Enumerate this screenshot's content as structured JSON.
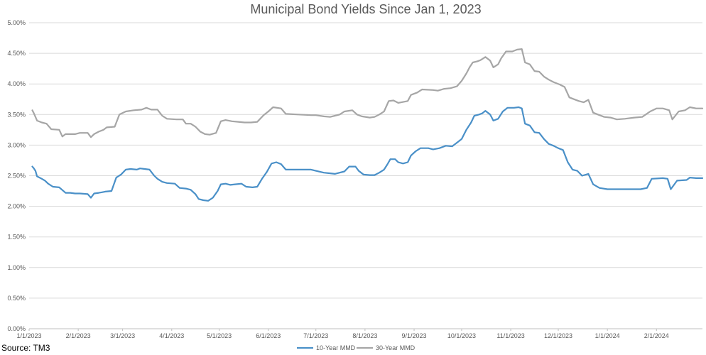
{
  "chart_data": {
    "type": "line",
    "title": "Municipal Bond Yields Since Jan 1, 2023",
    "xlabel": "",
    "ylabel": "",
    "y_unit": "%",
    "ylim": [
      0,
      5
    ],
    "y_ticks": [
      0,
      0.5,
      1.0,
      1.5,
      2.0,
      2.5,
      3.0,
      3.5,
      4.0,
      4.5,
      5.0
    ],
    "y_tick_labels": [
      "0.00%",
      "0.50%",
      "1.00%",
      "1.50%",
      "2.00%",
      "2.50%",
      "3.00%",
      "3.50%",
      "4.00%",
      "4.50%",
      "5.00%"
    ],
    "xlim": [
      "1/1/2023",
      "3/1/2024"
    ],
    "x_tick_labels": [
      "1/1/2023",
      "2/1/2023",
      "3/1/2023",
      "4/1/2023",
      "5/1/2023",
      "6/1/2023",
      "7/1/2023",
      "8/1/2023",
      "9/1/2023",
      "10/1/2023",
      "11/1/2023",
      "12/1/2023",
      "1/1/2024",
      "2/1/2024"
    ],
    "grid": "horizontal",
    "legend_position": "bottom",
    "series": [
      {
        "name": "10-Year MMD",
        "color": "#4a90c8",
        "points": [
          [
            "1/3/2023",
            2.65
          ],
          [
            "1/4/2023",
            2.62
          ],
          [
            "1/5/2023",
            2.58
          ],
          [
            "1/6/2023",
            2.49
          ],
          [
            "1/9/2023",
            2.45
          ],
          [
            "1/11/2023",
            2.42
          ],
          [
            "1/13/2023",
            2.37
          ],
          [
            "1/16/2023",
            2.32
          ],
          [
            "1/20/2023",
            2.31
          ],
          [
            "1/24/2023",
            2.22
          ],
          [
            "1/27/2023",
            2.22
          ],
          [
            "1/30/2023",
            2.21
          ],
          [
            "2/2/2023",
            2.21
          ],
          [
            "2/7/2023",
            2.2
          ],
          [
            "2/9/2023",
            2.14
          ],
          [
            "2/11/2023",
            2.21
          ],
          [
            "2/14/2023",
            2.22
          ],
          [
            "2/16/2023",
            2.23
          ],
          [
            "2/18/2023",
            2.24
          ],
          [
            "2/22/2023",
            2.25
          ],
          [
            "2/25/2023",
            2.47
          ],
          [
            "2/28/2023",
            2.52
          ],
          [
            "3/3/2023",
            2.6
          ],
          [
            "3/6/2023",
            2.61
          ],
          [
            "3/10/2023",
            2.6
          ],
          [
            "3/12/2023",
            2.62
          ],
          [
            "3/15/2023",
            2.61
          ],
          [
            "3/18/2023",
            2.6
          ],
          [
            "3/21/2023",
            2.5
          ],
          [
            "3/23/2023",
            2.45
          ],
          [
            "3/26/2023",
            2.4
          ],
          [
            "3/29/2023",
            2.38
          ],
          [
            "4/3/2023",
            2.37
          ],
          [
            "4/6/2023",
            2.3
          ],
          [
            "4/10/2023",
            2.29
          ],
          [
            "4/13/2023",
            2.27
          ],
          [
            "4/16/2023",
            2.2
          ],
          [
            "4/18/2023",
            2.12
          ],
          [
            "4/21/2023",
            2.1
          ],
          [
            "4/24/2023",
            2.09
          ],
          [
            "4/27/2023",
            2.14
          ],
          [
            "4/30/2023",
            2.25
          ],
          [
            "5/2/2023",
            2.36
          ],
          [
            "5/5/2023",
            2.37
          ],
          [
            "5/8/2023",
            2.35
          ],
          [
            "5/11/2023",
            2.36
          ],
          [
            "5/15/2023",
            2.37
          ],
          [
            "5/18/2023",
            2.32
          ],
          [
            "5/22/2023",
            2.31
          ],
          [
            "5/25/2023",
            2.32
          ],
          [
            "5/28/2023",
            2.45
          ],
          [
            "5/31/2023",
            2.56
          ],
          [
            "6/3/2023",
            2.7
          ],
          [
            "6/6/2023",
            2.72
          ],
          [
            "6/9/2023",
            2.69
          ],
          [
            "6/12/2023",
            2.6
          ],
          [
            "6/16/2023",
            2.6
          ],
          [
            "6/20/2023",
            2.6
          ],
          [
            "6/24/2023",
            2.6
          ],
          [
            "6/28/2023",
            2.6
          ],
          [
            "7/1/2023",
            2.58
          ],
          [
            "7/6/2023",
            2.55
          ],
          [
            "7/10/2023",
            2.54
          ],
          [
            "7/13/2023",
            2.53
          ],
          [
            "7/16/2023",
            2.55
          ],
          [
            "7/19/2023",
            2.57
          ],
          [
            "7/22/2023",
            2.65
          ],
          [
            "7/26/2023",
            2.65
          ],
          [
            "7/28/2023",
            2.58
          ],
          [
            "7/31/2023",
            2.52
          ],
          [
            "8/4/2023",
            2.51
          ],
          [
            "8/7/2023",
            2.51
          ],
          [
            "8/10/2023",
            2.55
          ],
          [
            "8/13/2023",
            2.6
          ],
          [
            "8/15/2023",
            2.68
          ],
          [
            "8/17/2023",
            2.77
          ],
          [
            "8/20/2023",
            2.77
          ],
          [
            "8/22/2023",
            2.72
          ],
          [
            "8/25/2023",
            2.7
          ],
          [
            "8/28/2023",
            2.72
          ],
          [
            "8/30/2023",
            2.83
          ],
          [
            "9/2/2023",
            2.9
          ],
          [
            "9/5/2023",
            2.95
          ],
          [
            "9/10/2023",
            2.95
          ],
          [
            "9/13/2023",
            2.93
          ],
          [
            "9/17/2023",
            2.95
          ],
          [
            "9/21/2023",
            2.99
          ],
          [
            "9/25/2023",
            2.98
          ],
          [
            "9/28/2023",
            3.04
          ],
          [
            "10/1/2023",
            3.1
          ],
          [
            "10/4/2023",
            3.25
          ],
          [
            "10/7/2023",
            3.37
          ],
          [
            "10/9/2023",
            3.48
          ],
          [
            "10/12/2023",
            3.5
          ],
          [
            "10/14/2023",
            3.52
          ],
          [
            "10/16/2023",
            3.56
          ],
          [
            "10/19/2023",
            3.5
          ],
          [
            "10/21/2023",
            3.4
          ],
          [
            "10/24/2023",
            3.43
          ],
          [
            "10/27/2023",
            3.55
          ],
          [
            "10/30/2023",
            3.61
          ],
          [
            "11/3/2023",
            3.61
          ],
          [
            "11/6/2023",
            3.62
          ],
          [
            "11/8/2023",
            3.6
          ],
          [
            "11/10/2023",
            3.35
          ],
          [
            "11/13/2023",
            3.32
          ],
          [
            "11/16/2023",
            3.21
          ],
          [
            "11/19/2023",
            3.2
          ],
          [
            "11/22/2023",
            3.1
          ],
          [
            "11/25/2023",
            3.02
          ],
          [
            "11/28/2023",
            2.99
          ],
          [
            "12/1/2023",
            2.95
          ],
          [
            "12/4/2023",
            2.92
          ],
          [
            "12/7/2023",
            2.72
          ],
          [
            "12/10/2023",
            2.6
          ],
          [
            "12/13/2023",
            2.58
          ],
          [
            "12/16/2023",
            2.5
          ],
          [
            "12/20/2023",
            2.53
          ],
          [
            "12/23/2023",
            2.36
          ],
          [
            "12/27/2023",
            2.3
          ],
          [
            "1/1/2024",
            2.28
          ],
          [
            "1/8/2024",
            2.28
          ],
          [
            "1/15/2024",
            2.28
          ],
          [
            "1/22/2024",
            2.28
          ],
          [
            "1/26/2024",
            2.3
          ],
          [
            "1/29/2024",
            2.45
          ],
          [
            "2/5/2024",
            2.46
          ],
          [
            "2/8/2024",
            2.45
          ],
          [
            "2/10/2024",
            2.28
          ],
          [
            "2/14/2024",
            2.42
          ],
          [
            "2/20/2024",
            2.43
          ],
          [
            "2/22/2024",
            2.47
          ],
          [
            "2/26/2024",
            2.46
          ],
          [
            "3/1/2024",
            2.46
          ]
        ]
      },
      {
        "name": "30-Year MMD",
        "color": "#a6a6a6",
        "points": [
          [
            "1/3/2023",
            3.57
          ],
          [
            "1/4/2023",
            3.52
          ],
          [
            "1/6/2023",
            3.4
          ],
          [
            "1/9/2023",
            3.37
          ],
          [
            "1/12/2023",
            3.35
          ],
          [
            "1/15/2023",
            3.26
          ],
          [
            "1/20/2023",
            3.25
          ],
          [
            "1/22/2023",
            3.14
          ],
          [
            "1/24/2023",
            3.18
          ],
          [
            "1/30/2023",
            3.18
          ],
          [
            "2/2/2023",
            3.2
          ],
          [
            "2/7/2023",
            3.2
          ],
          [
            "2/9/2023",
            3.13
          ],
          [
            "2/11/2023",
            3.18
          ],
          [
            "2/14/2023",
            3.22
          ],
          [
            "2/17/2023",
            3.25
          ],
          [
            "2/19/2023",
            3.29
          ],
          [
            "2/24/2023",
            3.3
          ],
          [
            "2/27/2023",
            3.5
          ],
          [
            "3/3/2023",
            3.55
          ],
          [
            "3/8/2023",
            3.57
          ],
          [
            "3/13/2023",
            3.58
          ],
          [
            "3/16/2023",
            3.61
          ],
          [
            "3/19/2023",
            3.58
          ],
          [
            "3/23/2023",
            3.58
          ],
          [
            "3/26/2023",
            3.48
          ],
          [
            "3/29/2023",
            3.43
          ],
          [
            "4/4/2023",
            3.42
          ],
          [
            "4/8/2023",
            3.42
          ],
          [
            "4/10/2023",
            3.35
          ],
          [
            "4/13/2023",
            3.35
          ],
          [
            "4/16/2023",
            3.3
          ],
          [
            "4/19/2023",
            3.22
          ],
          [
            "4/22/2023",
            3.18
          ],
          [
            "4/25/2023",
            3.17
          ],
          [
            "4/29/2023",
            3.2
          ],
          [
            "5/2/2023",
            3.39
          ],
          [
            "5/5/2023",
            3.41
          ],
          [
            "5/9/2023",
            3.39
          ],
          [
            "5/13/2023",
            3.38
          ],
          [
            "5/17/2023",
            3.37
          ],
          [
            "5/21/2023",
            3.37
          ],
          [
            "5/25/2023",
            3.38
          ],
          [
            "5/29/2023",
            3.49
          ],
          [
            "6/1/2023",
            3.55
          ],
          [
            "6/4/2023",
            3.62
          ],
          [
            "6/9/2023",
            3.6
          ],
          [
            "6/12/2023",
            3.51
          ],
          [
            "6/20/2023",
            3.5
          ],
          [
            "6/28/2023",
            3.49
          ],
          [
            "7/1/2023",
            3.49
          ],
          [
            "7/6/2023",
            3.47
          ],
          [
            "7/10/2023",
            3.46
          ],
          [
            "7/13/2023",
            3.48
          ],
          [
            "7/16/2023",
            3.5
          ],
          [
            "7/19/2023",
            3.55
          ],
          [
            "7/24/2023",
            3.57
          ],
          [
            "7/27/2023",
            3.5
          ],
          [
            "7/30/2023",
            3.47
          ],
          [
            "8/4/2023",
            3.45
          ],
          [
            "8/7/2023",
            3.46
          ],
          [
            "8/10/2023",
            3.5
          ],
          [
            "8/13/2023",
            3.55
          ],
          [
            "8/16/2023",
            3.72
          ],
          [
            "8/19/2023",
            3.73
          ],
          [
            "8/22/2023",
            3.69
          ],
          [
            "8/28/2023",
            3.72
          ],
          [
            "8/30/2023",
            3.82
          ],
          [
            "9/3/2023",
            3.86
          ],
          [
            "9/6/2023",
            3.91
          ],
          [
            "9/13/2023",
            3.9
          ],
          [
            "9/16/2023",
            3.89
          ],
          [
            "9/20/2023",
            3.92
          ],
          [
            "9/24/2023",
            3.93
          ],
          [
            "9/28/2023",
            3.96
          ],
          [
            "10/1/2023",
            4.05
          ],
          [
            "10/4/2023",
            4.17
          ],
          [
            "10/6/2023",
            4.27
          ],
          [
            "10/8/2023",
            4.35
          ],
          [
            "10/11/2023",
            4.37
          ],
          [
            "10/13/2023",
            4.39
          ],
          [
            "10/16/2023",
            4.44
          ],
          [
            "10/19/2023",
            4.38
          ],
          [
            "10/21/2023",
            4.27
          ],
          [
            "10/24/2023",
            4.32
          ],
          [
            "10/26/2023",
            4.42
          ],
          [
            "10/29/2023",
            4.53
          ],
          [
            "11/2/2023",
            4.53
          ],
          [
            "11/5/2023",
            4.56
          ],
          [
            "11/8/2023",
            4.57
          ],
          [
            "11/10/2023",
            4.35
          ],
          [
            "11/13/2023",
            4.32
          ],
          [
            "11/16/2023",
            4.21
          ],
          [
            "11/19/2023",
            4.2
          ],
          [
            "11/22/2023",
            4.12
          ],
          [
            "11/25/2023",
            4.07
          ],
          [
            "11/28/2023",
            4.03
          ],
          [
            "12/2/2023",
            3.99
          ],
          [
            "12/5/2023",
            3.95
          ],
          [
            "12/8/2023",
            3.78
          ],
          [
            "12/11/2023",
            3.75
          ],
          [
            "12/14/2023",
            3.72
          ],
          [
            "12/17/2023",
            3.7
          ],
          [
            "12/20/2023",
            3.74
          ],
          [
            "12/23/2023",
            3.53
          ],
          [
            "12/26/2023",
            3.5
          ],
          [
            "12/30/2023",
            3.46
          ],
          [
            "1/3/2024",
            3.45
          ],
          [
            "1/7/2024",
            3.42
          ],
          [
            "1/12/2024",
            3.43
          ],
          [
            "1/18/2024",
            3.45
          ],
          [
            "1/23/2024",
            3.46
          ],
          [
            "1/28/2024",
            3.55
          ],
          [
            "2/1/2024",
            3.6
          ],
          [
            "2/5/2024",
            3.6
          ],
          [
            "2/9/2024",
            3.57
          ],
          [
            "2/11/2024",
            3.42
          ],
          [
            "2/15/2024",
            3.55
          ],
          [
            "2/19/2024",
            3.57
          ],
          [
            "2/22/2024",
            3.62
          ],
          [
            "2/26/2024",
            3.6
          ],
          [
            "3/1/2024",
            3.6
          ]
        ]
      }
    ]
  },
  "source": "Source: TM3"
}
